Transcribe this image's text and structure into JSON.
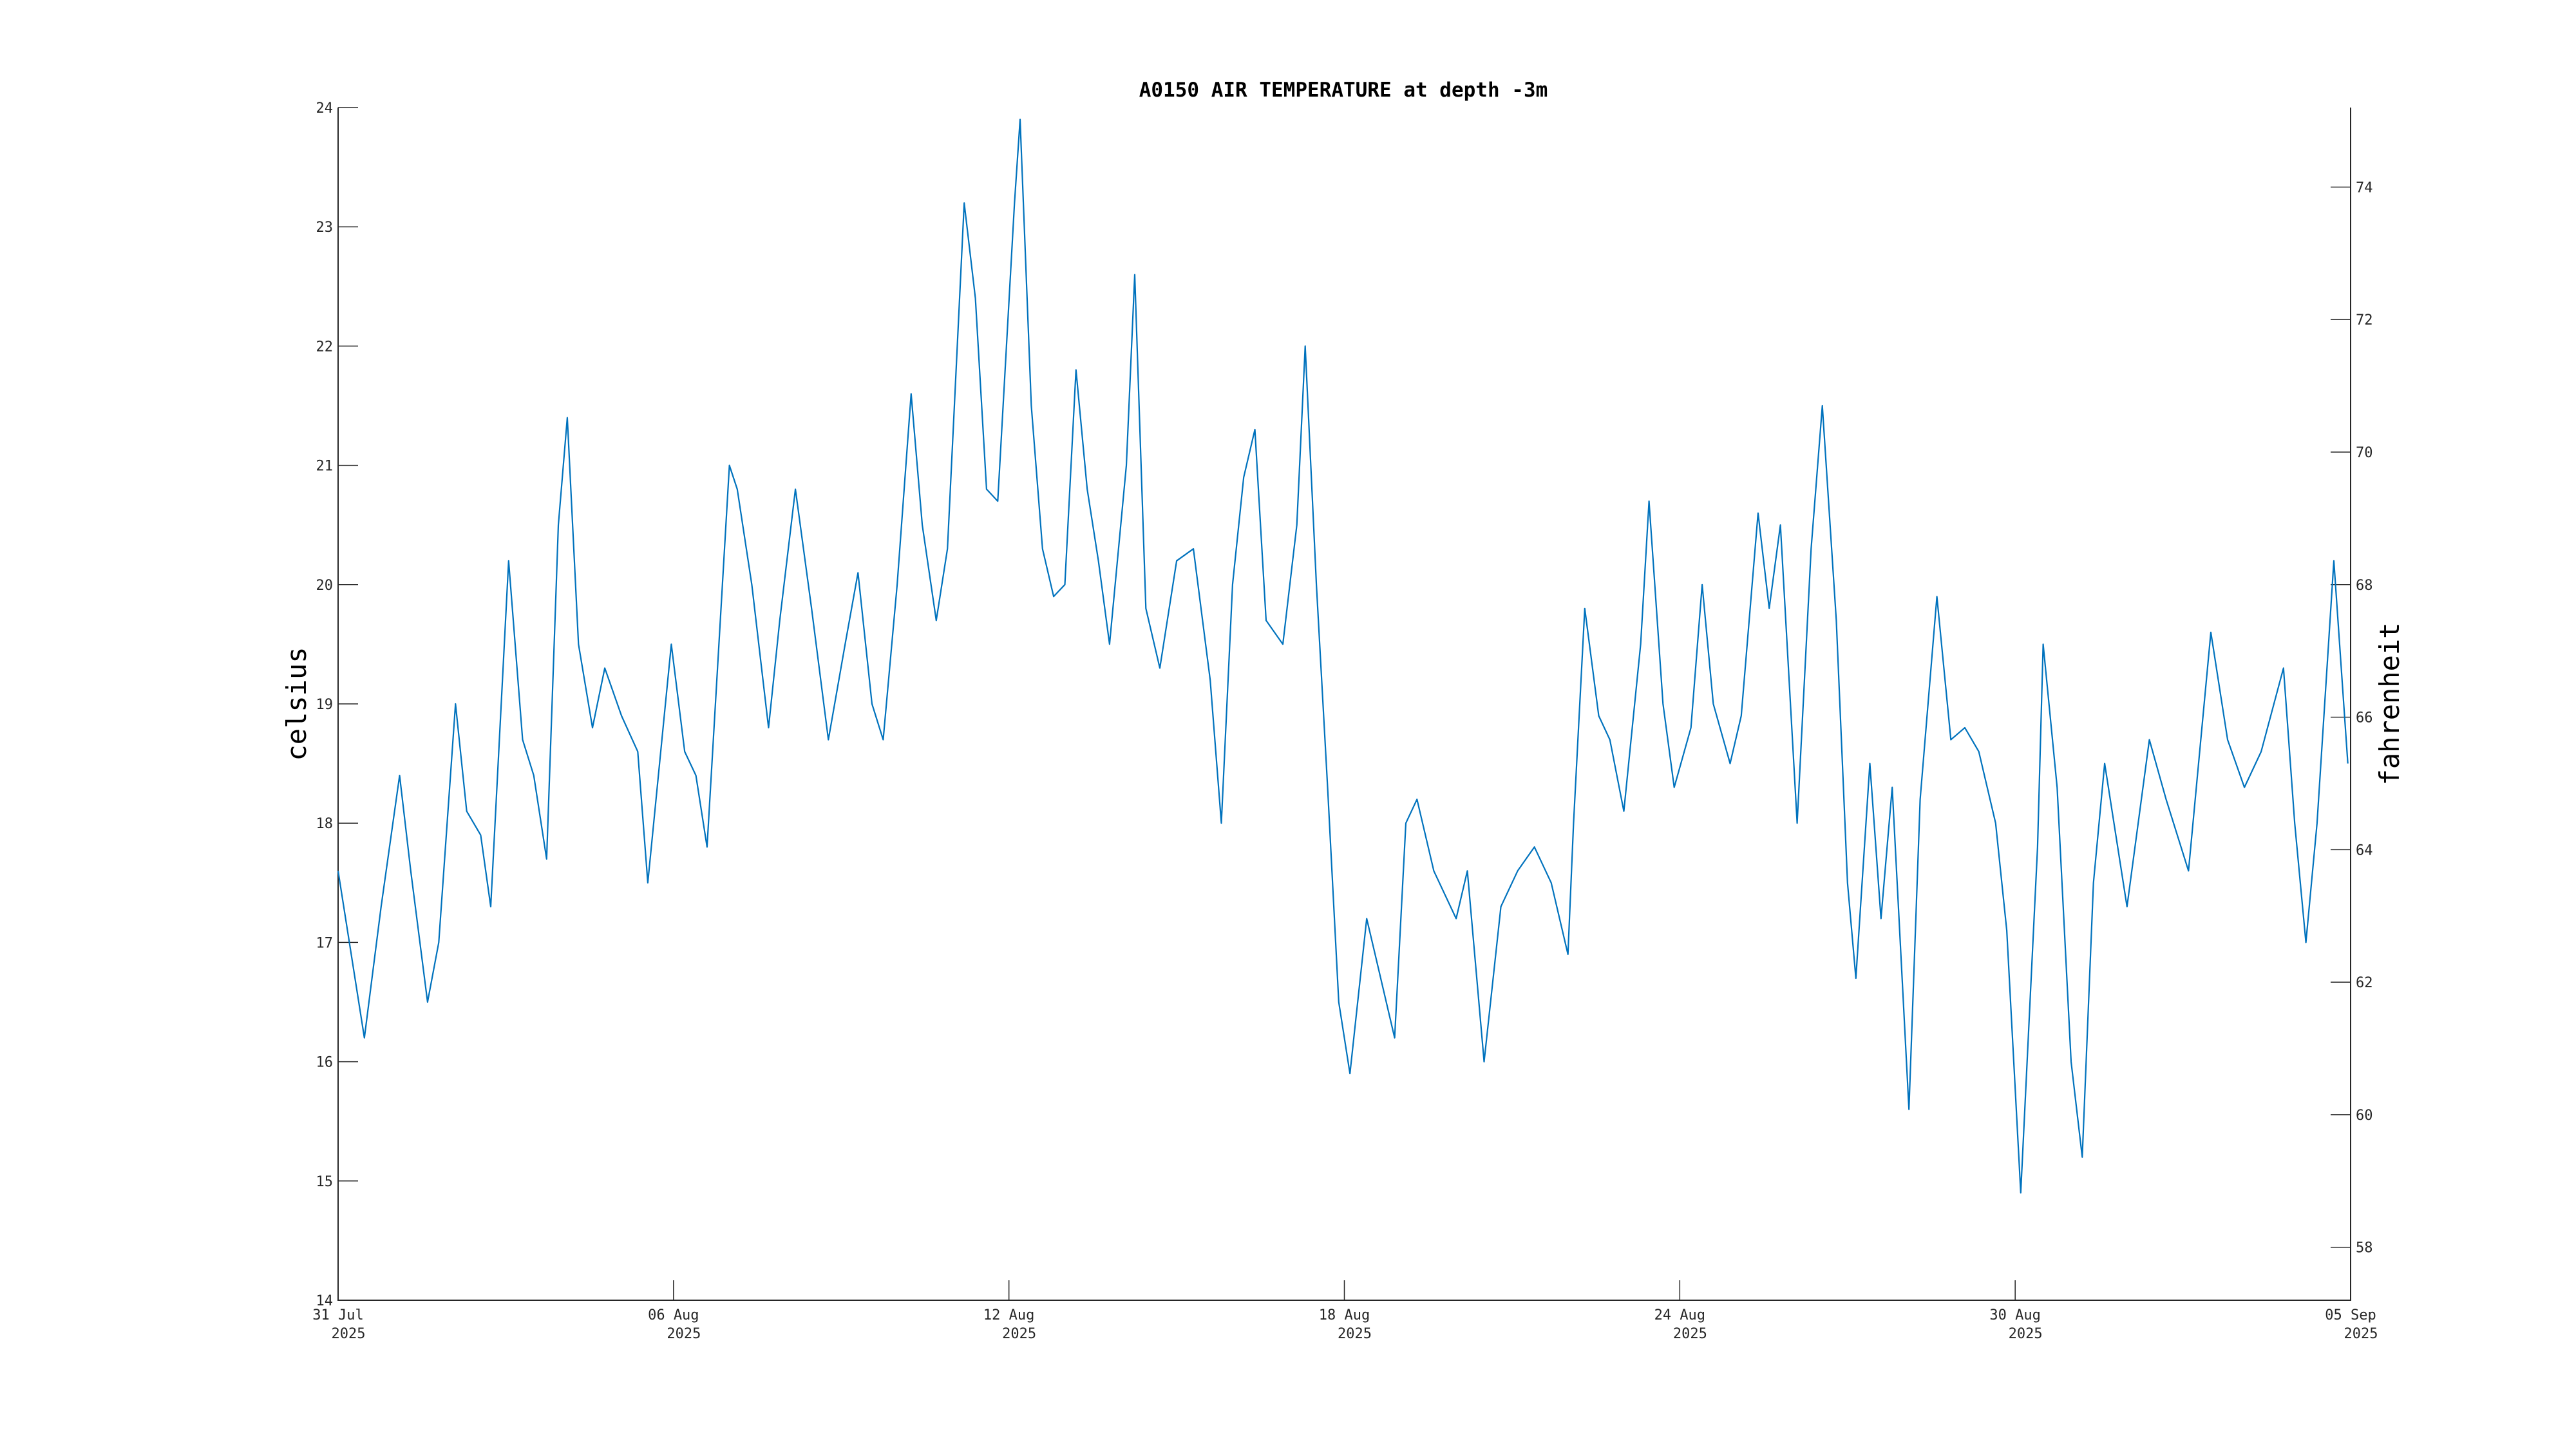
{
  "chart_data": {
    "type": "line",
    "title": "A0150 AIR TEMPERATURE at depth -3m",
    "ylabel": "celsius",
    "y2label": "fahrenheit",
    "x": [
      0,
      0.47,
      0.77,
      1.1,
      1.3,
      1.6,
      1.8,
      2.1,
      2.3,
      2.55,
      2.73,
      3.05,
      3.3,
      3.5,
      3.73,
      3.94,
      4.1,
      4.3,
      4.55,
      4.77,
      5.07,
      5.36,
      5.54,
      5.96,
      6.2,
      6.4,
      6.6,
      7.0,
      7.14,
      7.4,
      7.7,
      7.9,
      8.18,
      8.47,
      8.77,
      9.07,
      9.3,
      9.55,
      9.75,
      10.0,
      10.25,
      10.45,
      10.7,
      10.9,
      11.2,
      11.4,
      11.6,
      11.8,
      12.1,
      12.2,
      12.4,
      12.6,
      12.8,
      13.0,
      13.2,
      13.4,
      13.6,
      13.8,
      14.1,
      14.25,
      14.45,
      14.7,
      15.0,
      15.3,
      15.6,
      15.8,
      16.0,
      16.2,
      16.4,
      16.6,
      16.9,
      17.15,
      17.3,
      17.5,
      17.7,
      17.9,
      18.1,
      18.4,
      18.6,
      18.9,
      19.1,
      19.3,
      19.6,
      20.0,
      20.2,
      20.5,
      20.8,
      21.1,
      21.4,
      21.7,
      22.0,
      22.1,
      22.3,
      22.55,
      22.75,
      23.0,
      23.3,
      23.45,
      23.7,
      23.9,
      24.2,
      24.4,
      24.6,
      24.9,
      25.1,
      25.4,
      25.6,
      25.8,
      26.1,
      26.35,
      26.55,
      26.8,
      27.0,
      27.15,
      27.4,
      27.6,
      27.8,
      28.1,
      28.3,
      28.6,
      28.85,
      29.1,
      29.35,
      29.65,
      29.85,
      30.1,
      30.4,
      30.5,
      30.75,
      31.0,
      31.2,
      31.4,
      31.6,
      32.0,
      32.4,
      32.7,
      33.1,
      33.5,
      33.8,
      34.1,
      34.4,
      34.8,
      35.0,
      35.2,
      35.4,
      35.7,
      35.95
    ],
    "series": [
      {
        "color": "#0072bd",
        "values": [
          17.6,
          16.2,
          17.3,
          18.4,
          17.6,
          16.5,
          17.0,
          19.0,
          18.1,
          17.9,
          17.3,
          20.2,
          18.7,
          18.4,
          17.7,
          20.5,
          21.4,
          19.5,
          18.8,
          19.3,
          18.9,
          18.6,
          17.5,
          19.5,
          18.6,
          18.4,
          17.8,
          21.0,
          20.8,
          20.0,
          18.8,
          19.7,
          20.8,
          19.8,
          18.7,
          19.5,
          20.1,
          19.0,
          18.7,
          20.0,
          21.6,
          20.5,
          19.7,
          20.3,
          23.2,
          22.4,
          20.8,
          20.7,
          23.2,
          23.9,
          21.5,
          20.3,
          19.9,
          20.0,
          21.8,
          20.8,
          20.2,
          19.5,
          21.0,
          22.6,
          19.8,
          19.3,
          20.2,
          20.3,
          19.2,
          18.0,
          20.0,
          20.9,
          21.3,
          19.7,
          19.5,
          20.5,
          22.0,
          20.0,
          18.3,
          16.5,
          15.9,
          17.2,
          16.8,
          16.2,
          18.0,
          18.2,
          17.6,
          17.2,
          17.6,
          16.0,
          17.3,
          17.6,
          17.8,
          17.5,
          16.9,
          18.0,
          19.8,
          18.9,
          18.7,
          18.1,
          19.5,
          20.7,
          19.0,
          18.3,
          18.8,
          20.0,
          19.0,
          18.5,
          18.9,
          20.6,
          19.8,
          20.5,
          18.0,
          20.3,
          21.5,
          19.7,
          17.5,
          16.7,
          18.5,
          17.2,
          18.3,
          15.6,
          18.2,
          19.9,
          18.7,
          18.8,
          18.6,
          18.0,
          17.1,
          14.9,
          17.8,
          19.5,
          18.3,
          16.0,
          15.2,
          17.5,
          18.5,
          17.3,
          18.7,
          18.2,
          17.6,
          19.6,
          18.7,
          18.3,
          18.6,
          19.3,
          18.0,
          17.0,
          18.0,
          20.2,
          18.5
        ]
      }
    ],
    "xlim": [
      0,
      36
    ],
    "xticks": [
      {
        "value": 0,
        "label": [
          "31 Jul",
          "2025"
        ]
      },
      {
        "value": 6,
        "label": [
          "06 Aug",
          "2025"
        ]
      },
      {
        "value": 12,
        "label": [
          "12 Aug",
          "2025"
        ]
      },
      {
        "value": 18,
        "label": [
          "18 Aug",
          "2025"
        ]
      },
      {
        "value": 24,
        "label": [
          "24 Aug",
          "2025"
        ]
      },
      {
        "value": 30,
        "label": [
          "30 Aug",
          "2025"
        ]
      },
      {
        "value": 36,
        "label": [
          "05 Sep",
          "2025"
        ]
      }
    ],
    "ylim": [
      14,
      24
    ],
    "yticks": [
      14,
      15,
      16,
      17,
      18,
      19,
      20,
      21,
      22,
      23,
      24
    ],
    "y2lim": [
      57.2,
      75.2
    ],
    "y2ticks": [
      58,
      60,
      62,
      64,
      66,
      68,
      70,
      72,
      74
    ],
    "grid": false
  }
}
